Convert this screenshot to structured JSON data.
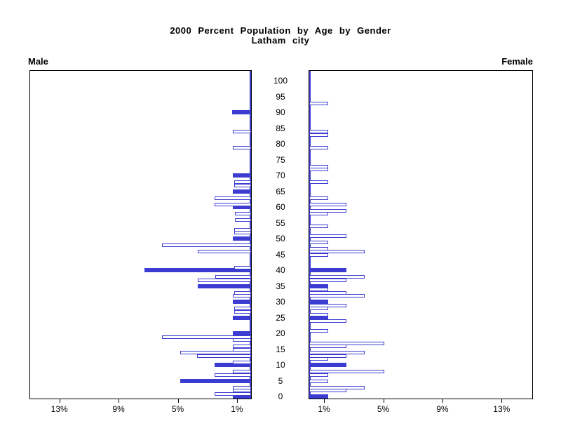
{
  "title": "2000 Percent Population by Age by Gender",
  "subtitle": "Latham city",
  "side_labels": {
    "left": "Male",
    "right": "Female"
  },
  "colors": {
    "bar_blue": "#3c3cd2",
    "frame": "#000000",
    "text": "#000000"
  },
  "chart_data": {
    "type": "bar",
    "variant": "population-pyramid",
    "title": "2000 Percent Population by Age by Gender",
    "subtitle": "Latham city",
    "grid": false,
    "legend_position": "none",
    "x_axis": {
      "unit": "percent",
      "tick_values": [
        1,
        5,
        9,
        13
      ],
      "tick_labels": [
        "1%",
        "5%",
        "9%",
        "13%"
      ],
      "axis_max_percent": 15
    },
    "y_axis": {
      "label": "age",
      "tick_ages": [
        0,
        5,
        10,
        15,
        20,
        25,
        30,
        35,
        40,
        45,
        50,
        55,
        60,
        65,
        70,
        75,
        80,
        85,
        90,
        95,
        100
      ],
      "min": 0,
      "max": 100
    },
    "bar_style_note": "filled = solid blue bar, otherwise white bar with blue outline",
    "series": [
      {
        "name": "Male",
        "side": "left",
        "bars": [
          {
            "age": 0,
            "pct": 1.25,
            "filled": true
          },
          {
            "age": 1,
            "pct": 2.45,
            "filled": false
          },
          {
            "age": 2,
            "pct": 1.25,
            "filled": false
          },
          {
            "age": 3,
            "pct": 1.25,
            "filled": false
          },
          {
            "age": 5,
            "pct": 4.8,
            "filled": true
          },
          {
            "age": 7,
            "pct": 2.45,
            "filled": false
          },
          {
            "age": 8,
            "pct": 1.25,
            "filled": false
          },
          {
            "age": 10,
            "pct": 2.45,
            "filled": true
          },
          {
            "age": 11,
            "pct": 1.25,
            "filled": false
          },
          {
            "age": 13,
            "pct": 3.65,
            "filled": false
          },
          {
            "age": 14,
            "pct": 4.8,
            "filled": false
          },
          {
            "age": 15,
            "pct": 1.25,
            "filled": false
          },
          {
            "age": 16,
            "pct": 1.25,
            "filled": false
          },
          {
            "age": 18,
            "pct": 1.25,
            "filled": false
          },
          {
            "age": 19,
            "pct": 6.0,
            "filled": false
          },
          {
            "age": 20,
            "pct": 1.25,
            "filled": true
          },
          {
            "age": 25,
            "pct": 1.25,
            "filled": true
          },
          {
            "age": 27,
            "pct": 1.15,
            "filled": false
          },
          {
            "age": 28,
            "pct": 1.15,
            "filled": false
          },
          {
            "age": 30,
            "pct": 1.25,
            "filled": true
          },
          {
            "age": 32,
            "pct": 1.25,
            "filled": false
          },
          {
            "age": 33,
            "pct": 1.15,
            "filled": false
          },
          {
            "age": 35,
            "pct": 3.6,
            "filled": true
          },
          {
            "age": 37,
            "pct": 3.6,
            "filled": false
          },
          {
            "age": 38,
            "pct": 2.4,
            "filled": false
          },
          {
            "age": 40,
            "pct": 7.2,
            "filled": true
          },
          {
            "age": 41,
            "pct": 1.15,
            "filled": false
          },
          {
            "age": 46,
            "pct": 3.6,
            "filled": false
          },
          {
            "age": 48,
            "pct": 6.0,
            "filled": false
          },
          {
            "age": 50,
            "pct": 1.25,
            "filled": true
          },
          {
            "age": 52,
            "pct": 1.15,
            "filled": false
          },
          {
            "age": 53,
            "pct": 1.15,
            "filled": false
          },
          {
            "age": 56,
            "pct": 1.1,
            "filled": false
          },
          {
            "age": 58,
            "pct": 1.1,
            "filled": false
          },
          {
            "age": 60,
            "pct": 1.25,
            "filled": true
          },
          {
            "age": 61,
            "pct": 2.45,
            "filled": false
          },
          {
            "age": 63,
            "pct": 2.45,
            "filled": false
          },
          {
            "age": 65,
            "pct": 1.25,
            "filled": true
          },
          {
            "age": 67,
            "pct": 1.15,
            "filled": false
          },
          {
            "age": 68,
            "pct": 1.15,
            "filled": false
          },
          {
            "age": 70,
            "pct": 1.25,
            "filled": true
          },
          {
            "age": 79,
            "pct": 1.25,
            "filled": false
          },
          {
            "age": 84,
            "pct": 1.25,
            "filled": false
          },
          {
            "age": 90,
            "pct": 1.3,
            "filled": true
          }
        ]
      },
      {
        "name": "Female",
        "side": "right",
        "bars": [
          {
            "age": 0,
            "pct": 1.27,
            "filled": true
          },
          {
            "age": 2,
            "pct": 2.5,
            "filled": false
          },
          {
            "age": 3,
            "pct": 3.76,
            "filled": false
          },
          {
            "age": 5,
            "pct": 1.27,
            "filled": false
          },
          {
            "age": 7,
            "pct": 1.27,
            "filled": false
          },
          {
            "age": 8,
            "pct": 5.05,
            "filled": false
          },
          {
            "age": 10,
            "pct": 2.5,
            "filled": true
          },
          {
            "age": 12,
            "pct": 1.27,
            "filled": false
          },
          {
            "age": 13,
            "pct": 2.5,
            "filled": false
          },
          {
            "age": 14,
            "pct": 3.76,
            "filled": false
          },
          {
            "age": 16,
            "pct": 2.5,
            "filled": false
          },
          {
            "age": 17,
            "pct": 5.05,
            "filled": false
          },
          {
            "age": 21,
            "pct": 1.27,
            "filled": false
          },
          {
            "age": 24,
            "pct": 2.5,
            "filled": false
          },
          {
            "age": 25,
            "pct": 1.27,
            "filled": true
          },
          {
            "age": 26,
            "pct": 1.27,
            "filled": false
          },
          {
            "age": 28,
            "pct": 1.27,
            "filled": false
          },
          {
            "age": 29,
            "pct": 2.5,
            "filled": false
          },
          {
            "age": 30,
            "pct": 1.27,
            "filled": true
          },
          {
            "age": 32,
            "pct": 3.76,
            "filled": false
          },
          {
            "age": 33,
            "pct": 2.5,
            "filled": false
          },
          {
            "age": 34,
            "pct": 1.27,
            "filled": false
          },
          {
            "age": 35,
            "pct": 1.27,
            "filled": true
          },
          {
            "age": 37,
            "pct": 2.5,
            "filled": false
          },
          {
            "age": 38,
            "pct": 3.76,
            "filled": false
          },
          {
            "age": 40,
            "pct": 2.5,
            "filled": true
          },
          {
            "age": 45,
            "pct": 1.27,
            "filled": false
          },
          {
            "age": 46,
            "pct": 3.76,
            "filled": false
          },
          {
            "age": 47,
            "pct": 1.27,
            "filled": false
          },
          {
            "age": 49,
            "pct": 1.27,
            "filled": false
          },
          {
            "age": 51,
            "pct": 2.5,
            "filled": false
          },
          {
            "age": 54,
            "pct": 1.27,
            "filled": false
          },
          {
            "age": 58,
            "pct": 1.27,
            "filled": false
          },
          {
            "age": 59,
            "pct": 2.5,
            "filled": false
          },
          {
            "age": 61,
            "pct": 2.5,
            "filled": false
          },
          {
            "age": 63,
            "pct": 1.27,
            "filled": false
          },
          {
            "age": 68,
            "pct": 1.27,
            "filled": false
          },
          {
            "age": 72,
            "pct": 1.27,
            "filled": false
          },
          {
            "age": 73,
            "pct": 1.27,
            "filled": false
          },
          {
            "age": 79,
            "pct": 1.27,
            "filled": false
          },
          {
            "age": 83,
            "pct": 1.27,
            "filled": false
          },
          {
            "age": 84,
            "pct": 1.27,
            "filled": false
          },
          {
            "age": 93,
            "pct": 1.27,
            "filled": false
          }
        ]
      }
    ]
  }
}
